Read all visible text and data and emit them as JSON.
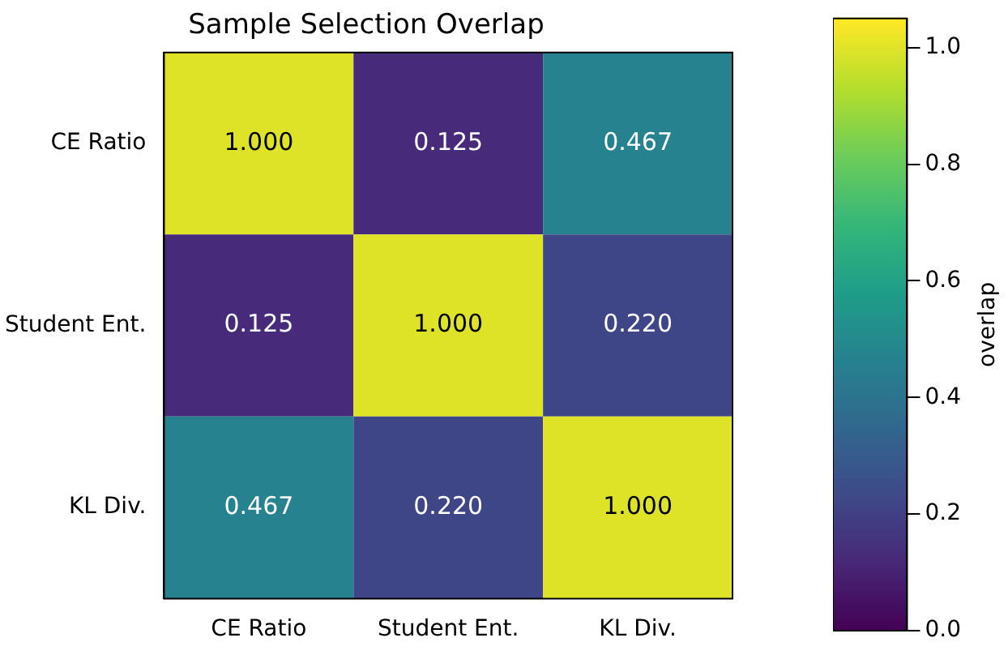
{
  "chart_data": {
    "type": "heatmap",
    "title": "Sample Selection Overlap",
    "clabel": "overlap",
    "categories": [
      "CE Ratio",
      "Student Ent.",
      "KL Div."
    ],
    "y_categories": [
      "CE Ratio",
      "Student Ent.",
      "KL Div."
    ],
    "cells": [
      [
        1.0,
        0.125,
        0.467
      ],
      [
        0.125,
        1.0,
        0.22
      ],
      [
        0.467,
        0.22,
        1.0
      ]
    ],
    "cell_labels": [
      [
        "1.000",
        "0.125",
        "0.467"
      ],
      [
        "0.125",
        "1.000",
        "0.220"
      ],
      [
        "0.467",
        "0.220",
        "1.000"
      ]
    ],
    "clim": [
      0,
      1.05
    ],
    "cticks": [
      {
        "value": 0,
        "label": "0.0"
      },
      0.2,
      0.4,
      0.6,
      0.8,
      {
        "value": 1,
        "label": "1.0"
      }
    ]
  }
}
